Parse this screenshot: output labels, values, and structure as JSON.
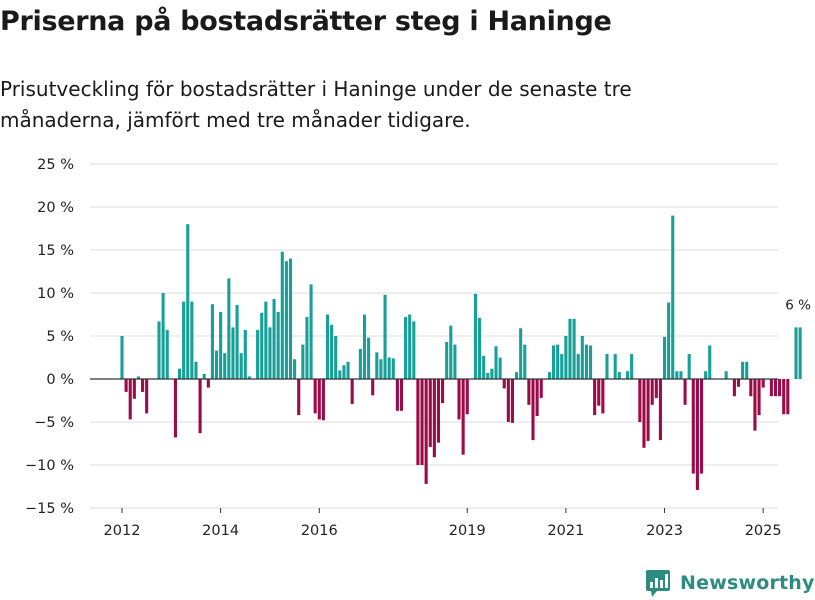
{
  "title": "Priserna på bostadsrätter steg i Haninge",
  "subtitle": "Prisutveckling för bostadsrätter i Haninge under de senaste tre månaderna, jämfört med tre månader tidigare.",
  "brand": "Newsworthy",
  "colors": {
    "positive": "#17a097",
    "negative": "#9a0b48",
    "grid": "#dcdcdc",
    "axis": "#333333",
    "brand": "#2c8c80"
  },
  "chart_data": {
    "type": "bar",
    "title": "Priserna på bostadsrätter steg i Haninge",
    "xlabel": "",
    "ylabel": "",
    "ylim": [
      -15,
      25
    ],
    "y_ticks": [
      -15,
      -10,
      -5,
      0,
      5,
      10,
      15,
      20,
      25
    ],
    "y_tick_labels": [
      "−15 %",
      "−10 %",
      "−5 %",
      "0 %",
      "5 %",
      "10 %",
      "15 %",
      "20 %",
      "25 %"
    ],
    "x_ticks": [
      {
        "label": "2012",
        "at": 0
      },
      {
        "label": "2014",
        "at": 24
      },
      {
        "label": "2016",
        "at": 48
      },
      {
        "label": "2019",
        "at": 84
      },
      {
        "label": "2021",
        "at": 108
      },
      {
        "label": "2023",
        "at": 132
      },
      {
        "label": "2025",
        "at": 156
      }
    ],
    "start": "2012-01",
    "values": [
      5,
      -1.5,
      -4.7,
      -2.3,
      0.3,
      -1.5,
      -4,
      0,
      0,
      6.7,
      10,
      5.7,
      0,
      -6.8,
      1.2,
      9,
      18,
      9,
      2,
      -6.3,
      0.6,
      -1,
      8.7,
      3.3,
      7.8,
      3,
      11.7,
      6,
      8.6,
      3,
      5.7,
      0.3,
      0,
      5.7,
      7.7,
      9,
      6,
      9.3,
      7.8,
      14.8,
      13.7,
      14,
      2.3,
      -4.2,
      4,
      7.2,
      11,
      -4,
      -4.7,
      -4.8,
      7.5,
      6.3,
      5,
      1,
      1.6,
      2,
      -2.9,
      0,
      3.5,
      7.5,
      4.8,
      -1.9,
      3.1,
      2.3,
      9.8,
      2.5,
      2.4,
      -3.7,
      -3.7,
      7.2,
      7.5,
      6.7,
      -10,
      -10,
      -12.2,
      -7.9,
      -9.1,
      -7.4,
      -2.8,
      4.3,
      6.2,
      4,
      -4.7,
      -8.8,
      -4.1,
      0,
      9.9,
      7.1,
      2.7,
      0.7,
      1.2,
      3.8,
      2.5,
      -1.1,
      -5,
      -5.1,
      0.8,
      5.9,
      4,
      -3,
      -7.1,
      -4.3,
      -2.2,
      0,
      0.8,
      3.9,
      4,
      2.9,
      5,
      7,
      7,
      2.9,
      5,
      4,
      3.9,
      -4.2,
      -3.1,
      -4,
      2.9,
      0,
      2.9,
      0.8,
      0,
      0.9,
      2.9,
      0,
      -5,
      -8,
      -7.2,
      -3,
      -2.2,
      -7.1,
      4.9,
      8.9,
      19,
      0.9,
      0.9,
      -3,
      2.9,
      -11,
      -12.9,
      -11,
      0.9,
      3.9,
      0,
      0,
      0,
      0.9,
      0,
      -2,
      -0.9,
      2,
      2,
      -2,
      -6,
      -4.2,
      -1,
      0,
      -2,
      -2,
      -2,
      -4.1,
      -4.1,
      0,
      6,
      6
    ],
    "annotation": "6 %"
  }
}
